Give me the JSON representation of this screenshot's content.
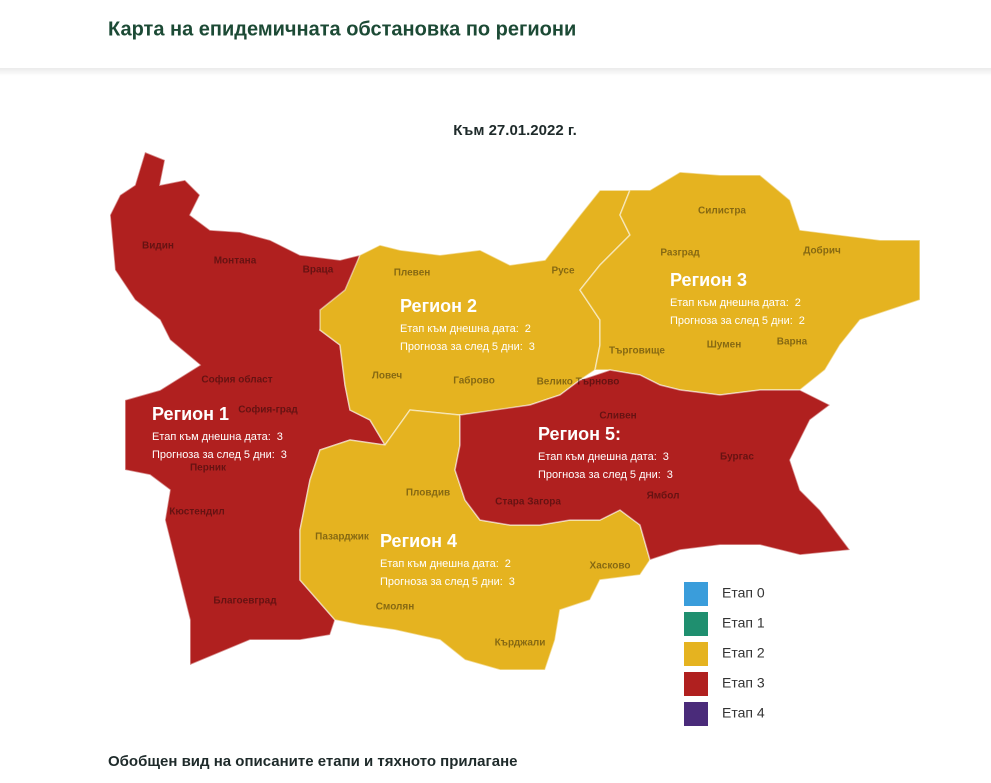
{
  "header": {
    "title": "Карта на епидемичната обстановка по региони"
  },
  "map": {
    "date": "Към 27.01.2022 г.",
    "regions": [
      {
        "name": "Регион 1",
        "current_label": "Етап към днешна дата:",
        "current": 3,
        "forecast_label": "Прогноза за след 5 дни:",
        "forecast": 3
      },
      {
        "name": "Регион 2",
        "current_label": "Етап към днешна дата:",
        "current": 2,
        "forecast_label": "Прогноза за след 5 дни:",
        "forecast": 3
      },
      {
        "name": "Регион 3",
        "current_label": "Етап към днешна дата:",
        "current": 2,
        "forecast_label": "Прогноза за след 5 дни:",
        "forecast": 2
      },
      {
        "name": "Регион 4",
        "current_label": "Етап към днешна дата:",
        "current": 2,
        "forecast_label": "Прогноза за след 5 дни:",
        "forecast": 3
      },
      {
        "name": "Регион 5:",
        "current_label": "Етап към днешна дата:",
        "current": 3,
        "forecast_label": "Прогноза за след 5 дни:",
        "forecast": 3
      }
    ],
    "provinces": [
      "Видин",
      "Монтана",
      "Враца",
      "София област",
      "София-град",
      "Перник",
      "Кюстендил",
      "Благоевград",
      "Плевен",
      "Ловеч",
      "Габрово",
      "Велико Търново",
      "Русе",
      "Разград",
      "Силистра",
      "Добрич",
      "Търговище",
      "Шумен",
      "Варна",
      "Сливен",
      "Бургас",
      "Ямбол",
      "Стара Загора",
      "Хасково",
      "Кърджали",
      "Смолян",
      "Пазарджик",
      "Пловдив"
    ],
    "legend": [
      {
        "label": "Етап 0",
        "color": "#3a9ddb"
      },
      {
        "label": "Етап 1",
        "color": "#1f8f6f"
      },
      {
        "label": "Етап 2",
        "color": "#e5b320"
      },
      {
        "label": "Етап 3",
        "color": "#b0201f"
      },
      {
        "label": "Етап 4",
        "color": "#4a2b7a"
      }
    ]
  },
  "footer": {
    "subtitle": "Обобщен вид на описаните етапи и тяхното прилагане"
  }
}
